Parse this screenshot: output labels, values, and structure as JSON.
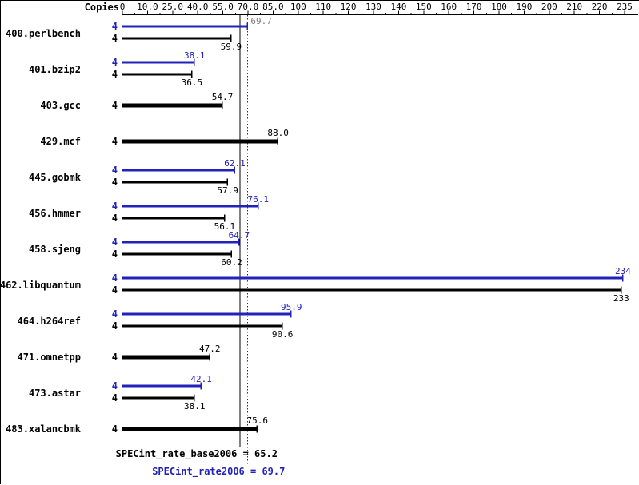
{
  "palette": {
    "peak": "#2222bb",
    "base": "#000000",
    "muted_label": "#808080",
    "background": "#ffffff",
    "border": "#000000"
  },
  "chart_data": {
    "type": "bar",
    "orientation": "horizontal",
    "title": "",
    "axis": {
      "position": "top",
      "copies_header": "Copies",
      "xlim": [
        0,
        235
      ],
      "ticks": [
        {
          "value": 0,
          "label": "0"
        },
        {
          "value": 10,
          "label": "10.0"
        },
        {
          "value": 25,
          "label": "25.0"
        },
        {
          "value": 40,
          "label": "40.0"
        },
        {
          "value": 55,
          "label": "55.0"
        },
        {
          "value": 70,
          "label": "70.0"
        },
        {
          "value": 85,
          "label": "85.0"
        },
        {
          "value": 100,
          "label": "100"
        },
        {
          "value": 110,
          "label": "110"
        },
        {
          "value": 120,
          "label": "120"
        },
        {
          "value": 130,
          "label": "130"
        },
        {
          "value": 140,
          "label": "140"
        },
        {
          "value": 150,
          "label": "150"
        },
        {
          "value": 160,
          "label": "160"
        },
        {
          "value": 170,
          "label": "170"
        },
        {
          "value": 180,
          "label": "180"
        },
        {
          "value": 190,
          "label": "190"
        },
        {
          "value": 200,
          "label": "200"
        },
        {
          "value": 210,
          "label": "210"
        },
        {
          "value": 220,
          "label": "220"
        },
        {
          "value": 235,
          "label": "235"
        }
      ]
    },
    "benchmarks": [
      {
        "name": "400.perlbench",
        "copies": 4,
        "peak": 69.7,
        "peak_label": "69.7",
        "hide_peak_label": true,
        "base": 59.9,
        "base_label": "59.9"
      },
      {
        "name": "401.bzip2",
        "copies": 4,
        "peak": 38.1,
        "peak_label": "38.1",
        "base": 36.5,
        "base_label": "36.5"
      },
      {
        "name": "403.gcc",
        "copies": 4,
        "base_only": true,
        "base": 54.7,
        "base_label": "54.7"
      },
      {
        "name": "429.mcf",
        "copies": 4,
        "base_only": true,
        "base": 88.0,
        "base_label": "88.0"
      },
      {
        "name": "445.gobmk",
        "copies": 4,
        "peak": 62.1,
        "peak_label": "62.1",
        "base": 57.9,
        "base_label": "57.9"
      },
      {
        "name": "456.hmmer",
        "copies": 4,
        "peak": 76.1,
        "peak_label": "76.1",
        "base": 56.1,
        "base_label": "56.1"
      },
      {
        "name": "458.sjeng",
        "copies": 4,
        "peak": 64.7,
        "peak_label": "64.7",
        "base": 60.2,
        "base_label": "60.2"
      },
      {
        "name": "462.libquantum",
        "copies": 4,
        "peak": 234,
        "peak_label": "234",
        "base": 233,
        "base_label": "233"
      },
      {
        "name": "464.h264ref",
        "copies": 4,
        "peak": 95.9,
        "peak_label": "95.9",
        "base": 90.6,
        "base_label": "90.6"
      },
      {
        "name": "471.omnetpp",
        "copies": 4,
        "base_only": true,
        "base": 47.2,
        "base_label": "47.2"
      },
      {
        "name": "473.astar",
        "copies": 4,
        "peak": 42.1,
        "peak_label": "42.1",
        "base": 38.1,
        "base_label": "38.1"
      },
      {
        "name": "483.xalancbmk",
        "copies": 4,
        "base_only": true,
        "base": 75.6,
        "base_label": "75.6"
      }
    ],
    "mean_lines": [
      {
        "value": 65.2,
        "style": "solid",
        "color_role": "base",
        "bottom_label": "SPECint_rate_base2006 = 65.2"
      },
      {
        "value": 69.7,
        "style": "dotted",
        "color_role": "peak",
        "bottom_label": "SPECint_rate2006 = 69.7",
        "top_label": "69.7"
      }
    ]
  }
}
